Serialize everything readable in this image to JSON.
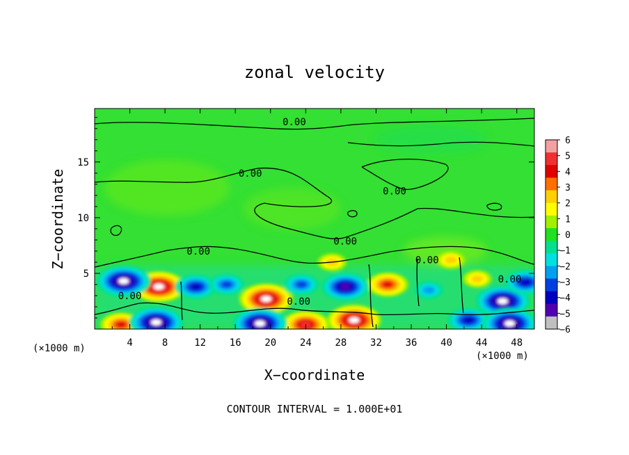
{
  "chart_data": {
    "type": "heatmap",
    "title": "zonal velocity",
    "xlabel": "X−coordinate",
    "ylabel": "Z−coordinate",
    "x_unit_left": "(×1000 m)",
    "x_unit_right": "(×1000 m)",
    "xlim": [
      0,
      50
    ],
    "ylim": [
      0,
      19.8
    ],
    "x_ticks": [
      4,
      8,
      12,
      16,
      20,
      24,
      28,
      32,
      36,
      40,
      44,
      48
    ],
    "x_tick_labels": [
      "4",
      "8",
      "12",
      "16",
      "20",
      "24",
      "28",
      "32",
      "36",
      "40",
      "44",
      "48"
    ],
    "y_ticks": [
      5,
      10,
      15
    ],
    "y_tick_labels": [
      "5",
      "10",
      "15"
    ],
    "colorbar": {
      "range": [
        -6,
        6
      ],
      "ticks": [
        6,
        5,
        4,
        3,
        2,
        1,
        0,
        -1,
        -2,
        -3,
        -4,
        -5,
        -6
      ],
      "tick_labels": [
        "6",
        "5",
        "4",
        "3",
        "2",
        "1",
        "0",
        "−1",
        "−2",
        "−3",
        "−4",
        "−5",
        "−6"
      ],
      "colors": [
        "#f4a0a0",
        "#f03030",
        "#e00000",
        "#ff7000",
        "#ffd000",
        "#ffff00",
        "#a0f000",
        "#20e020",
        "#00e090",
        "#00e0e0",
        "#00a0f0",
        "#0040e0",
        "#0000c0",
        "#5000b0",
        "#c0c0c0"
      ]
    },
    "contour_labels": [
      {
        "text": "0.00",
        "x": 22.7,
        "z": 18.6
      },
      {
        "text": "0.00",
        "x": 17.7,
        "z": 14.0
      },
      {
        "text": "0.00",
        "x": 34.1,
        "z": 12.4
      },
      {
        "text": "0.00",
        "x": 11.8,
        "z": 7.0
      },
      {
        "text": "0.00",
        "x": 28.5,
        "z": 7.9
      },
      {
        "text": "0.00",
        "x": 37.8,
        "z": 6.2
      },
      {
        "text": "0.00",
        "x": 47.2,
        "z": 4.5
      },
      {
        "text": "0.00",
        "x": 4.0,
        "z": 3.0
      },
      {
        "text": "0.00",
        "x": 23.2,
        "z": 2.5
      }
    ],
    "features": [
      {
        "kind": "jet",
        "sign": "positive",
        "x": 7.3,
        "z": 3.8,
        "value": 6
      },
      {
        "kind": "jet",
        "sign": "positive",
        "x": 19.5,
        "z": 2.7,
        "value": 6
      },
      {
        "kind": "jet",
        "sign": "positive",
        "x": 33.3,
        "z": 4.0,
        "value": 4
      },
      {
        "kind": "jet",
        "sign": "positive",
        "x": 29.5,
        "z": 0.8,
        "value": 6
      },
      {
        "kind": "jet",
        "sign": "positive",
        "x": 24.0,
        "z": 0.4,
        "value": 5
      },
      {
        "kind": "jet",
        "sign": "positive",
        "x": 3.0,
        "z": 0.4,
        "value": 4
      },
      {
        "kind": "jet",
        "sign": "negative",
        "x": 3.3,
        "z": 4.3,
        "value": -6
      },
      {
        "kind": "jet",
        "sign": "negative",
        "x": 7.0,
        "z": 0.6,
        "value": -6
      },
      {
        "kind": "jet",
        "sign": "negative",
        "x": 11.5,
        "z": 3.8,
        "value": -4
      },
      {
        "kind": "jet",
        "sign": "negative",
        "x": 15.0,
        "z": 4.0,
        "value": -3
      },
      {
        "kind": "jet",
        "sign": "negative",
        "x": 23.5,
        "z": 4.0,
        "value": -3
      },
      {
        "kind": "jet",
        "sign": "negative",
        "x": 28.5,
        "z": 3.8,
        "value": -5
      },
      {
        "kind": "jet",
        "sign": "negative",
        "x": 18.8,
        "z": 0.5,
        "value": -6
      },
      {
        "kind": "jet",
        "sign": "negative",
        "x": 42.5,
        "z": 0.8,
        "value": -4
      },
      {
        "kind": "jet",
        "sign": "negative",
        "x": 46.4,
        "z": 2.5,
        "value": -6
      },
      {
        "kind": "jet",
        "sign": "negative",
        "x": 47.2,
        "z": 0.5,
        "value": -6
      },
      {
        "kind": "jet",
        "sign": "negative",
        "x": 49.0,
        "z": 4.2,
        "value": -4
      },
      {
        "kind": "jet",
        "sign": "negative",
        "x": 38.0,
        "z": 3.5,
        "value": -2
      },
      {
        "kind": "jet",
        "sign": "positive",
        "x": 43.5,
        "z": 4.5,
        "value": 2
      },
      {
        "kind": "jet",
        "sign": "positive",
        "x": 40.5,
        "z": 6.2,
        "value": 2
      },
      {
        "kind": "jet",
        "sign": "positive",
        "x": 27.0,
        "z": 6.0,
        "value": 2
      }
    ]
  },
  "footer": {
    "contour_interval": "CONTOUR INTERVAL = 1.000E+01"
  }
}
